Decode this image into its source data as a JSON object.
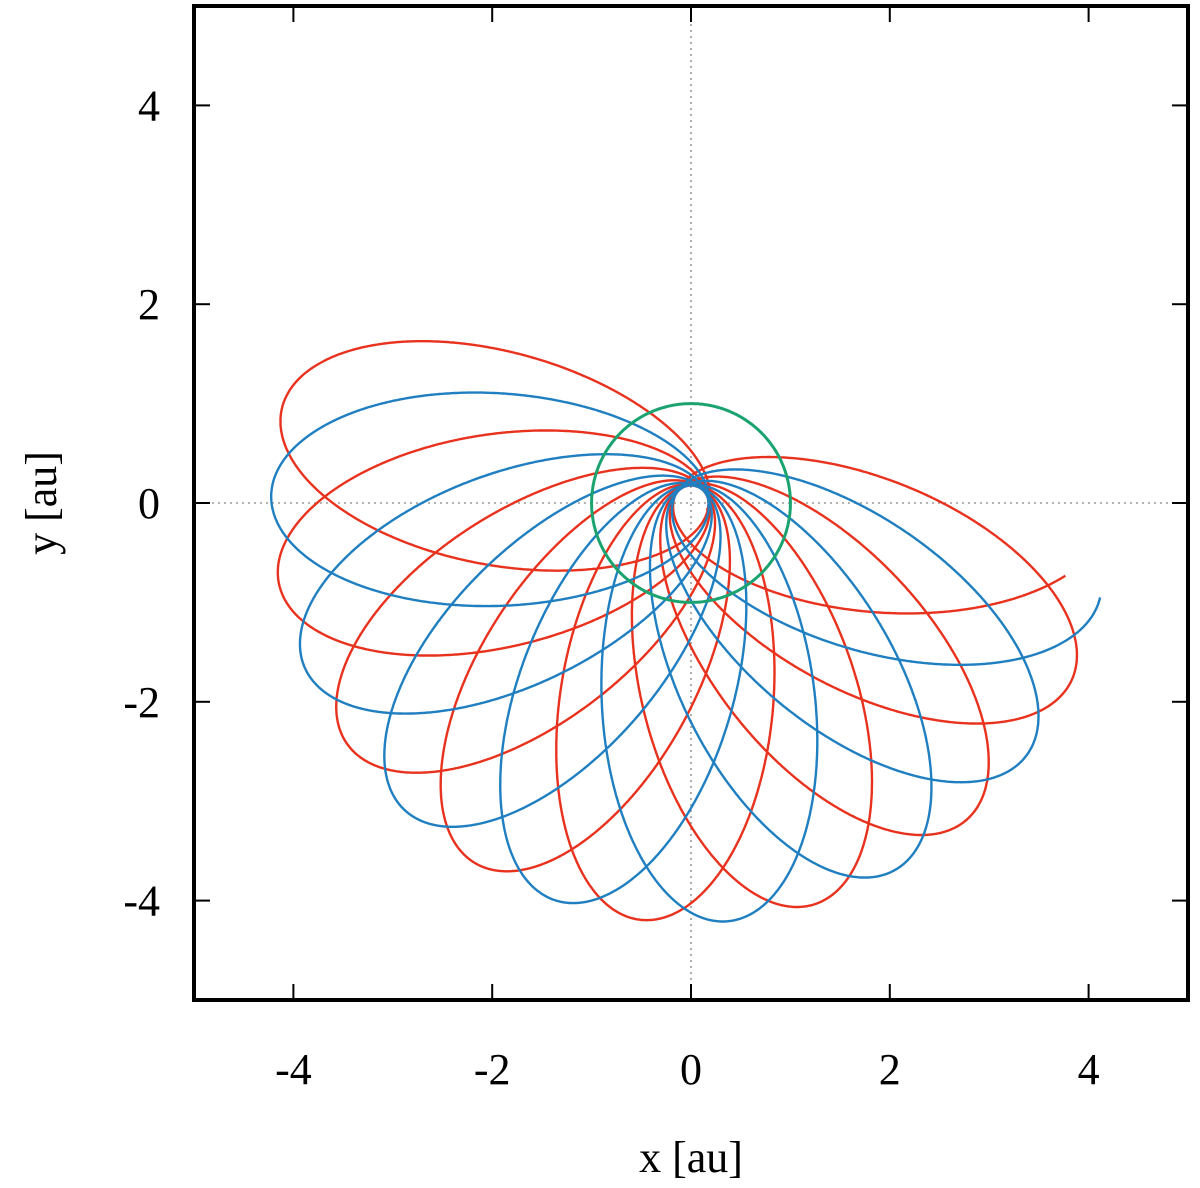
{
  "chart_data": {
    "type": "line",
    "title": "",
    "xlabel": "x [au]",
    "ylabel": "y [au]",
    "xlim": [
      -5,
      5
    ],
    "ylim": [
      -5,
      5
    ],
    "xticks": [
      -4,
      -2,
      0,
      2,
      4
    ],
    "yticks": [
      -4,
      -2,
      0,
      2,
      4
    ],
    "zero_lines": true,
    "grid": false,
    "legend": "none",
    "colors": {
      "red": "#e8321e",
      "blue": "#1f7fc0",
      "green": "#1aa36f"
    },
    "series": [
      {
        "color": "red",
        "kind": "precessing ellipse",
        "semi_major_axis": 2.2,
        "eccentricity": 0.92,
        "perihelion_start_deg": -25,
        "precession_per_orbit_deg": 24,
        "orbits": 8.4,
        "start": [
          1.45,
          0.85
        ],
        "end": [
          3.6,
          -1.7
        ]
      },
      {
        "color": "blue",
        "kind": "precessing ellipse",
        "semi_major_axis": 2.2,
        "eccentricity": 0.92,
        "perihelion_start_deg": -13,
        "precession_per_orbit_deg": 24,
        "orbits": 7.5
      },
      {
        "color": "green",
        "kind": "circle",
        "center": [
          0,
          0
        ],
        "radius": 1.0
      }
    ]
  }
}
